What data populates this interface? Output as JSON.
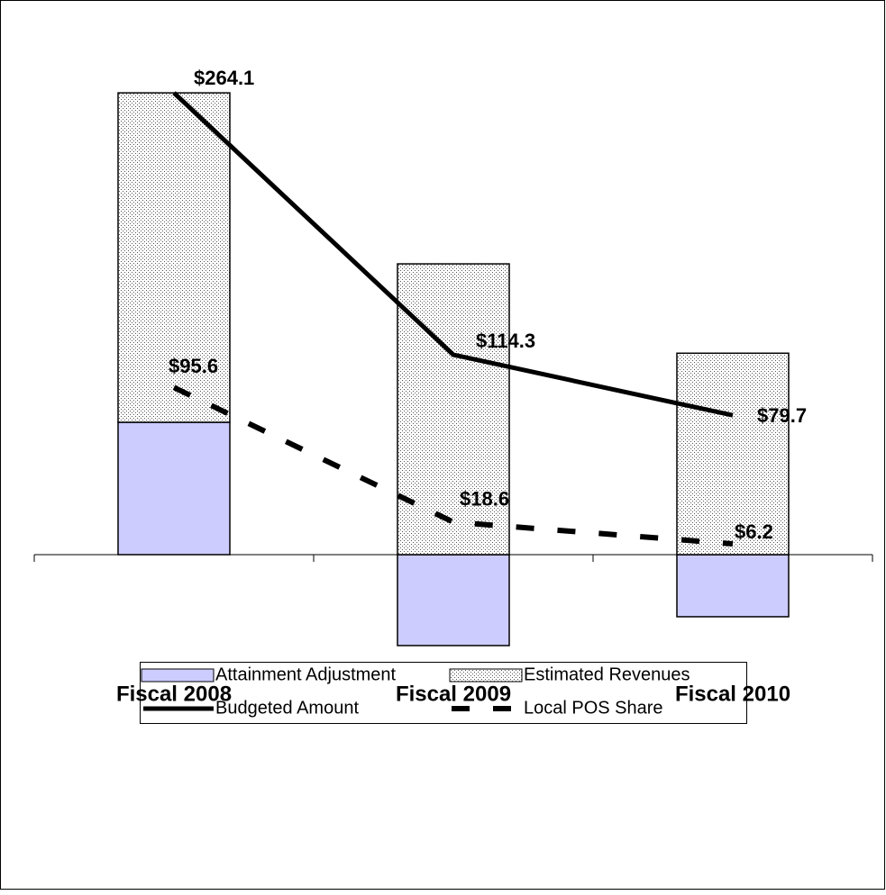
{
  "chart_data": {
    "type": "bar",
    "stacked": true,
    "categories": [
      "Fiscal 2008",
      "Fiscal 2009",
      "Fiscal 2010"
    ],
    "ylim": [
      -130,
      280
    ],
    "series": [
      {
        "name": "Attainment Adjustment",
        "type": "bar",
        "color": "#ccccff",
        "values": [
          75.7,
          -52.0,
          -35.5
        ]
      },
      {
        "name": "Estimated Revenues",
        "type": "bar",
        "color": "#ffffff",
        "pattern": "dots",
        "values": [
          188.4,
          166.3,
          115.2
        ]
      },
      {
        "name": "Budgeted Amount",
        "type": "line",
        "color": "#000000",
        "dashed": false,
        "values": [
          264.1,
          114.3,
          79.7
        ],
        "value_labels": [
          "$264.1",
          "$114.3",
          "$79.7"
        ]
      },
      {
        "name": "Local POS Share",
        "type": "line",
        "color": "#000000",
        "dashed": true,
        "values": [
          95.6,
          18.6,
          6.2
        ],
        "value_labels": [
          "$95.6",
          "$18.6",
          "$6.2"
        ]
      }
    ]
  }
}
